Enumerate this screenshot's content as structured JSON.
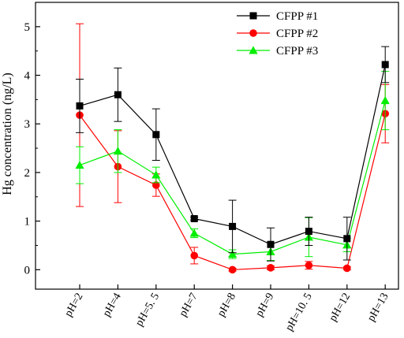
{
  "chart_data": {
    "type": "line",
    "ylabel": "Hg concentration (ng/L)",
    "xlabel": "",
    "categories": [
      "pH=2",
      "pH=4",
      "pH=5. 5",
      "pH=7",
      "pH=8",
      "pH=9",
      "pH=10. 5",
      "pH=12",
      "pH=13"
    ],
    "ylim": [
      -0.4,
      5.5
    ],
    "yticks": [
      0,
      1,
      2,
      3,
      4,
      5
    ],
    "grid": false,
    "legend_position": "top-right",
    "series": [
      {
        "name": "CFPP #1",
        "color": "#000000",
        "marker": "square",
        "values": [
          3.37,
          3.6,
          2.78,
          1.05,
          0.89,
          0.52,
          0.79,
          0.64,
          4.22
        ],
        "errors": [
          0.55,
          0.55,
          0.53,
          0.03,
          0.54,
          0.34,
          0.29,
          0.44,
          0.37
        ]
      },
      {
        "name": "CFPP #2",
        "color": "#ff0000",
        "marker": "circle",
        "values": [
          3.18,
          2.12,
          1.74,
          0.29,
          0.0,
          0.04,
          0.09,
          0.03,
          3.21
        ],
        "errors": [
          1.88,
          0.74,
          0.23,
          0.17,
          0.03,
          0.04,
          0.08,
          0.03,
          0.6
        ]
      },
      {
        "name": "CFPP #3",
        "color": "#00ee00",
        "marker": "triangle",
        "values": [
          2.15,
          2.44,
          1.95,
          0.75,
          0.32,
          0.37,
          0.67,
          0.51,
          3.48
        ],
        "errors": [
          0.38,
          0.44,
          0.16,
          0.09,
          0.09,
          0.18,
          0.4,
          0.14,
          0.6
        ]
      }
    ]
  }
}
